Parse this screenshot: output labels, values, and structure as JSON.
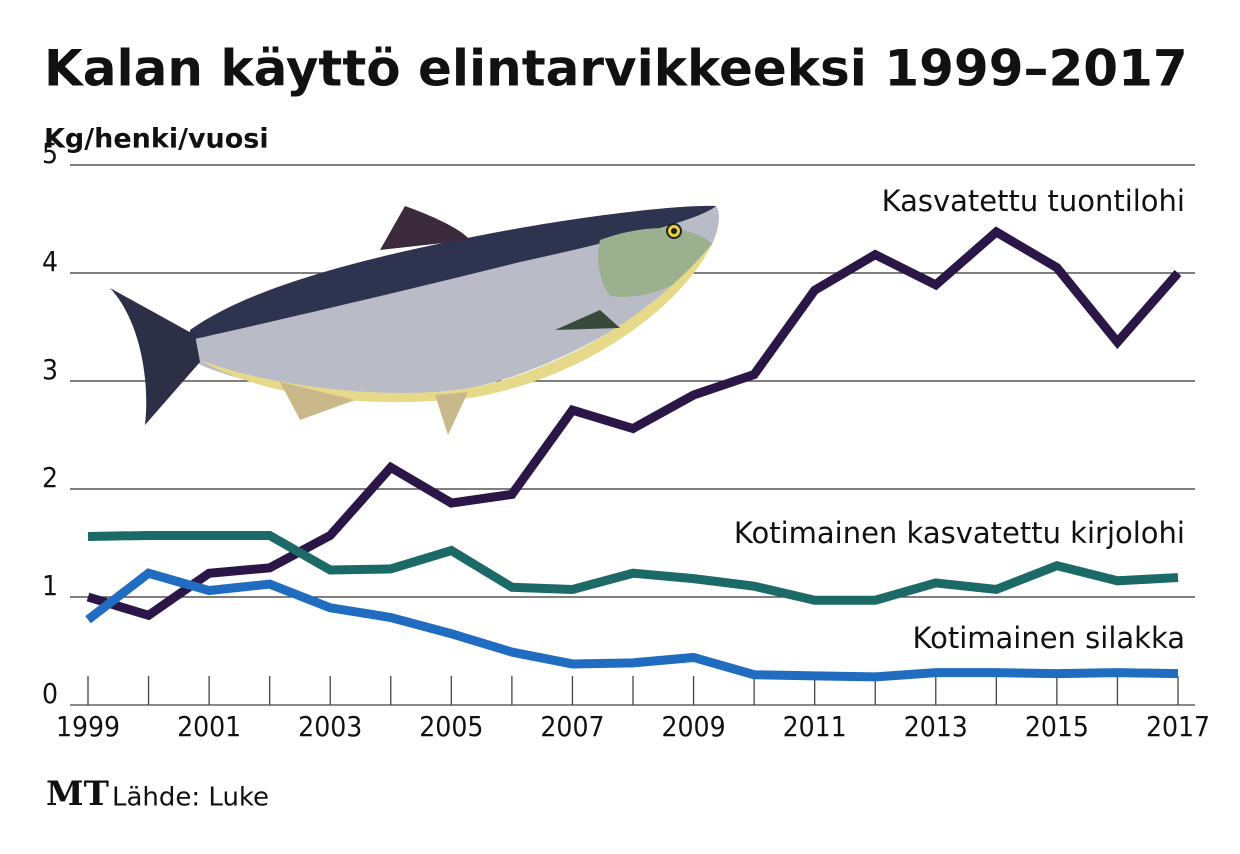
{
  "chart_data": {
    "type": "line",
    "title": "Kalan käyttö elintarvikkeeksi 1999–2017",
    "y_label": "Kg/henki/vuosi",
    "x": [
      1999,
      2000,
      2001,
      2002,
      2003,
      2004,
      2005,
      2006,
      2007,
      2008,
      2009,
      2010,
      2011,
      2012,
      2013,
      2014,
      2015,
      2016,
      2017
    ],
    "series": [
      {
        "name": "Kasvatettu tuontilohi",
        "color": "#2b1747",
        "values": [
          1.0,
          0.83,
          1.22,
          1.27,
          1.57,
          2.2,
          1.87,
          1.95,
          2.73,
          2.56,
          2.87,
          3.06,
          3.84,
          4.17,
          3.89,
          4.38,
          4.05,
          3.36,
          4.0
        ]
      },
      {
        "name": "Kotimainen kasvatettu kirjolohi",
        "color": "#1c6a68",
        "values": [
          1.56,
          1.57,
          1.57,
          1.57,
          1.25,
          1.26,
          1.43,
          1.09,
          1.07,
          1.22,
          1.17,
          1.1,
          0.97,
          0.97,
          1.13,
          1.07,
          1.29,
          1.15,
          1.18
        ]
      },
      {
        "name": "Kotimainen silakka",
        "color": "#1f6cc0",
        "values": [
          0.79,
          1.22,
          1.06,
          1.12,
          0.9,
          0.81,
          0.66,
          0.49,
          0.38,
          0.39,
          0.44,
          0.28,
          0.27,
          0.26,
          0.3,
          0.3,
          0.29,
          0.3,
          0.29
        ]
      }
    ],
    "xlim": [
      1999,
      2017
    ],
    "xticks": [
      1999,
      2001,
      2003,
      2005,
      2007,
      2009,
      2011,
      2013,
      2015,
      2017
    ],
    "ylim": [
      0,
      5
    ],
    "yticks": [
      0,
      1,
      2,
      3,
      4,
      5
    ],
    "grid": true,
    "logo": "MT",
    "source": "Lähde: Luke"
  }
}
